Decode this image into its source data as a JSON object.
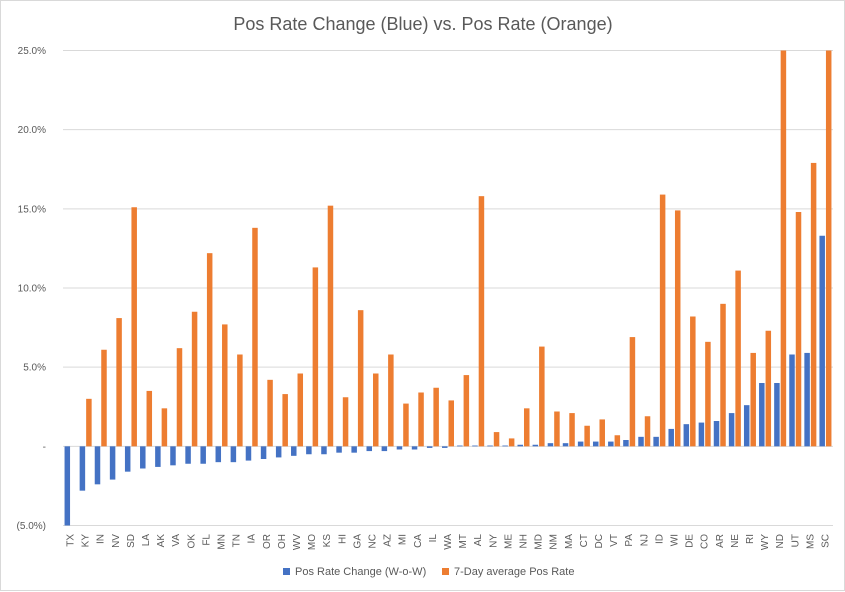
{
  "chart_data": {
    "type": "bar",
    "title": "Pos Rate Change (Blue) vs. Pos Rate (Orange)",
    "xlabel": "",
    "ylabel": "",
    "ylim": [
      -0.05,
      0.25
    ],
    "y_ticks": [
      -0.05,
      0,
      0.05,
      0.1,
      0.15,
      0.2,
      0.25
    ],
    "y_tick_labels": [
      "(5.0%)",
      "-",
      "5.0%",
      "10.0%",
      "15.0%",
      "20.0%",
      "25.0%"
    ],
    "grid": true,
    "legend_position": "bottom",
    "categories": [
      "TX",
      "KY",
      "IN",
      "NV",
      "SD",
      "LA",
      "AK",
      "VA",
      "OK",
      "FL",
      "MN",
      "TN",
      "IA",
      "OR",
      "OH",
      "WV",
      "MO",
      "KS",
      "HI",
      "GA",
      "NC",
      "AZ",
      "MI",
      "CA",
      "IL",
      "WA",
      "MT",
      "AL",
      "NY",
      "ME",
      "NH",
      "MD",
      "NM",
      "MA",
      "CT",
      "DC",
      "VT",
      "PA",
      "NJ",
      "ID",
      "WI",
      "DE",
      "CO",
      "AR",
      "NE",
      "RI",
      "WY",
      "ND",
      "UT",
      "MS",
      "SC"
    ],
    "series": [
      {
        "name": "Pos Rate Change (W-o-W)",
        "color": "#4472c4",
        "values": [
          -0.05,
          -0.028,
          -0.024,
          -0.021,
          -0.016,
          -0.014,
          -0.013,
          -0.012,
          -0.011,
          -0.011,
          -0.01,
          -0.01,
          -0.009,
          -0.008,
          -0.007,
          -0.006,
          -0.005,
          -0.005,
          -0.004,
          -0.004,
          -0.003,
          -0.003,
          -0.002,
          -0.002,
          -0.001,
          -0.001,
          0.0005,
          0.0005,
          0.0005,
          0.0005,
          0.001,
          0.001,
          0.002,
          0.002,
          0.003,
          0.003,
          0.003,
          0.004,
          0.006,
          0.006,
          0.011,
          0.014,
          0.015,
          0.016,
          0.021,
          0.026,
          0.04,
          0.04,
          0.058,
          0.059,
          0.133
        ]
      },
      {
        "name": "7-Day average Pos Rate",
        "color": "#ed7d31",
        "values": [
          0,
          0.03,
          0.061,
          0.081,
          0.151,
          0.035,
          0.024,
          0.062,
          0.085,
          0.122,
          0.077,
          0.058,
          0.138,
          0.042,
          0.033,
          0.046,
          0.113,
          0.152,
          0.031,
          0.086,
          0.046,
          0.058,
          0.027,
          0.034,
          0.037,
          0.029,
          0.045,
          0.158,
          0.009,
          0.005,
          0.024,
          0.063,
          0.022,
          0.021,
          0.013,
          0.017,
          0.007,
          0.069,
          0.019,
          0.159,
          0.149,
          0.082,
          0.066,
          0.09,
          0.111,
          0.059,
          0.073,
          0.25,
          0.148,
          0.179,
          0.25
        ]
      }
    ]
  }
}
